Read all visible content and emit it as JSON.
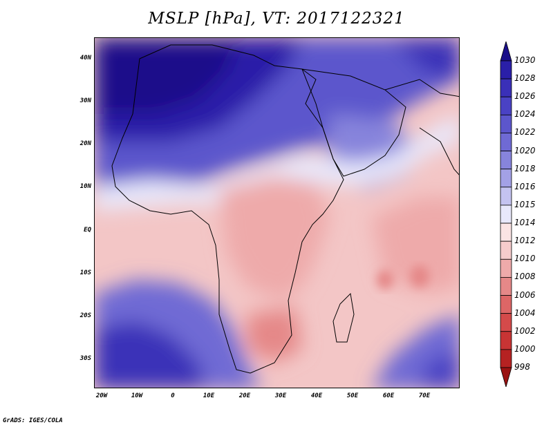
{
  "title": "MSLP [hPa], VT: 2017122321",
  "variable": "MSLP",
  "units": "hPa",
  "valid_time": "2017122321",
  "lat_labels": [
    "40N",
    "30N",
    "20N",
    "10N",
    "EQ",
    "10S",
    "20S",
    "30S"
  ],
  "lon_labels": [
    "20W",
    "10W",
    "0",
    "10E",
    "20E",
    "30E",
    "40E",
    "50E",
    "60E",
    "70E"
  ],
  "colorbar": {
    "levels": [
      "1030",
      "1028",
      "1026",
      "1024",
      "1022",
      "1020",
      "1018",
      "1016",
      "1015",
      "1014",
      "1012",
      "1010",
      "1008",
      "1006",
      "1004",
      "1002",
      "1000",
      "998"
    ],
    "colors": [
      "#1a0f8a",
      "#2a1fa8",
      "#3a30b8",
      "#4a42c4",
      "#5c56cc",
      "#6f6ad4",
      "#8784dc",
      "#a3a1e6",
      "#c4c3f0",
      "#e8e8fb",
      "#fbe4e4",
      "#f6cccc",
      "#eeaaaa",
      "#e58888",
      "#dd6666",
      "#d44a4a",
      "#c83434",
      "#b52222",
      "#9a1212"
    ]
  },
  "footer": "GrADS: IGES/COLA"
}
